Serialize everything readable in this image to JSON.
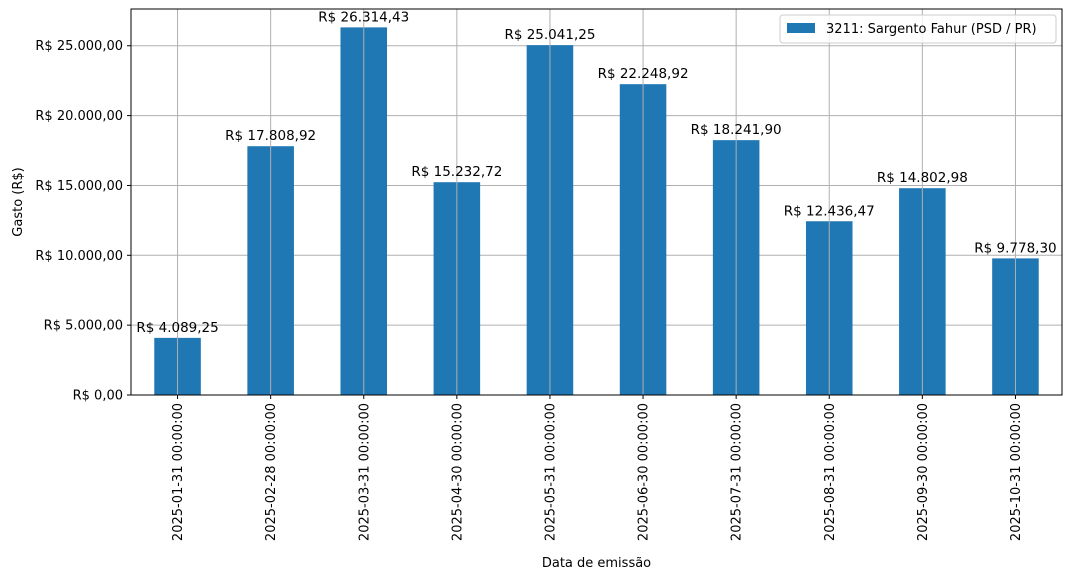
{
  "chart_data": {
    "type": "bar",
    "title": "",
    "xlabel": "Data de emissão",
    "ylabel": "Gasto (R$)",
    "categories": [
      "2025-01-31 00:00:00",
      "2025-02-28 00:00:00",
      "2025-03-31 00:00:00",
      "2025-04-30 00:00:00",
      "2025-05-31 00:00:00",
      "2025-06-30 00:00:00",
      "2025-07-31 00:00:00",
      "2025-08-31 00:00:00",
      "2025-09-30 00:00:00",
      "2025-10-31 00:00:00"
    ],
    "series": [
      {
        "name": "3211: Sargento Fahur (PSD / PR)",
        "color": "#1f77b4",
        "values": [
          4089.25,
          17808.92,
          26314.43,
          15232.72,
          25041.25,
          22248.92,
          18241.9,
          12436.47,
          14802.98,
          9778.3
        ],
        "labels": [
          "R$ 4.089,25",
          "R$ 17.808,92",
          "R$ 26.314,43",
          "R$ 15.232,72",
          "R$ 25.041,25",
          "R$ 22.248,92",
          "R$ 18.241,90",
          "R$ 12.436,47",
          "R$ 14.802,98",
          "R$ 9.778,30"
        ]
      }
    ],
    "ylim": [
      0,
      27630
    ],
    "yticks": [
      0,
      5000,
      10000,
      15000,
      20000,
      25000
    ],
    "ytick_labels": [
      "R$ 0,00",
      "R$ 5.000,00",
      "R$ 10.000,00",
      "R$ 15.000,00",
      "R$ 20.000,00",
      "R$ 25.000,00"
    ],
    "grid": true,
    "legend_position": "top-right"
  }
}
